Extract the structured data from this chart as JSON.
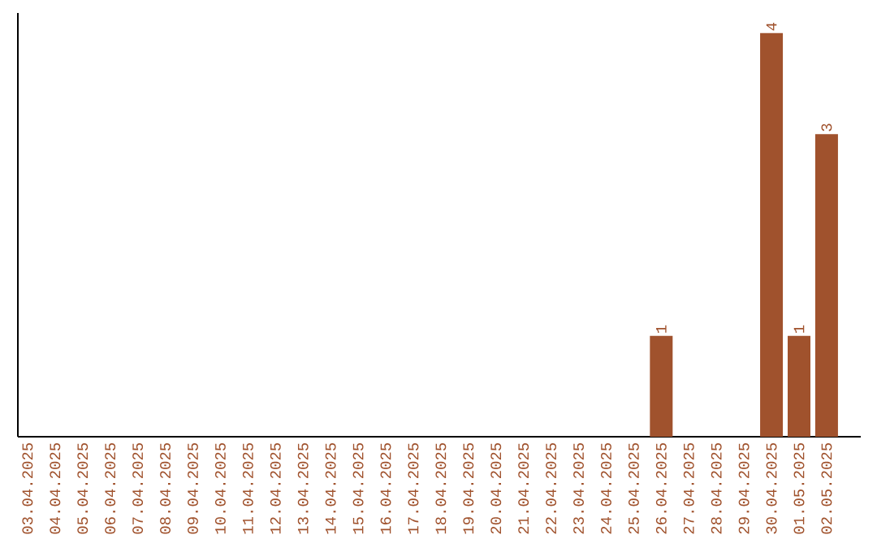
{
  "chart_data": {
    "type": "bar",
    "categories": [
      "03.04.2025",
      "04.04.2025",
      "05.04.2025",
      "06.04.2025",
      "07.04.2025",
      "08.04.2025",
      "09.04.2025",
      "10.04.2025",
      "11.04.2025",
      "12.04.2025",
      "13.04.2025",
      "14.04.2025",
      "15.04.2025",
      "16.04.2025",
      "17.04.2025",
      "18.04.2025",
      "19.04.2025",
      "20.04.2025",
      "21.04.2025",
      "22.04.2025",
      "23.04.2025",
      "24.04.2025",
      "25.04.2025",
      "26.04.2025",
      "27.04.2025",
      "28.04.2025",
      "29.04.2025",
      "30.04.2025",
      "01.05.2025",
      "02.05.2025"
    ],
    "values": [
      null,
      null,
      null,
      null,
      null,
      null,
      null,
      null,
      null,
      null,
      null,
      null,
      null,
      null,
      null,
      null,
      null,
      null,
      null,
      null,
      null,
      null,
      null,
      1,
      null,
      null,
      null,
      4,
      1,
      3
    ],
    "data_labels": true,
    "color": "#a0522d",
    "tick_labels": "x"
  }
}
